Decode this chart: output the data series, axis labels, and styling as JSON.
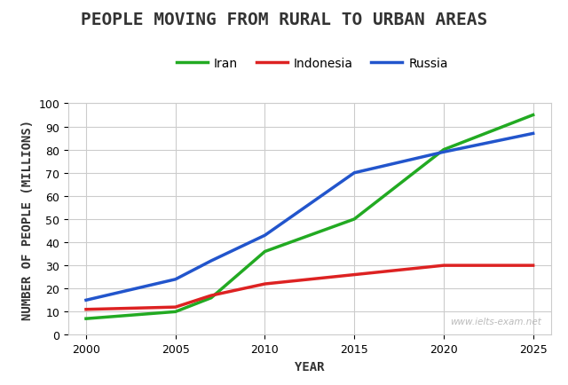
{
  "title": "PEOPLE MOVING FROM RURAL TO URBAN AREAS",
  "xlabel": "YEAR",
  "ylabel": "NUMBER OF PEOPLE (MILLIONS)",
  "years": [
    2000,
    2005,
    2007,
    2010,
    2015,
    2020,
    2025
  ],
  "iran": [
    7,
    10,
    16,
    36,
    50,
    80,
    95
  ],
  "indonesia": [
    11,
    12,
    17,
    22,
    26,
    30,
    30
  ],
  "russia": [
    15,
    24,
    32,
    43,
    70,
    79,
    87
  ],
  "iran_color": "#22aa22",
  "indonesia_color": "#dd2222",
  "russia_color": "#2255cc",
  "iran_label": "Iran",
  "indonesia_label": "Indonesia",
  "russia_label": "Russia",
  "ylim": [
    0,
    100
  ],
  "xlim": [
    1999,
    2026
  ],
  "yticks": [
    0,
    10,
    20,
    30,
    40,
    50,
    60,
    70,
    80,
    90,
    100
  ],
  "xticks": [
    2000,
    2005,
    2010,
    2015,
    2020,
    2025
  ],
  "linewidth": 2.5,
  "bg_color": "#ffffff",
  "grid_color": "#cccccc",
  "watermark": "www.ielts-exam.net",
  "title_fontsize": 14,
  "axis_label_fontsize": 10,
  "tick_fontsize": 9,
  "legend_fontsize": 10
}
